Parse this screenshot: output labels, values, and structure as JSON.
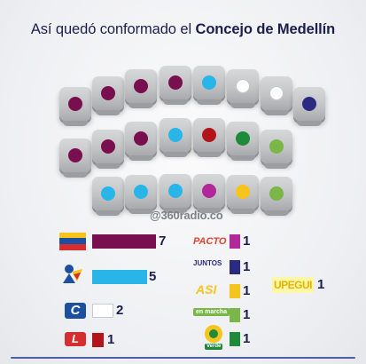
{
  "title": {
    "prefix": "Así quedó conformado el ",
    "bold": "Concejo de Medellín"
  },
  "source": "@360radio.co",
  "colors": {
    "purple": "#7a0f4f",
    "cyan": "#29b5e8",
    "white": "#ffffff",
    "navy": "#2a2a83",
    "red": "#b3141b",
    "green": "#1f8a3a",
    "lightgreen": "#7ab648",
    "yellow": "#f6c41a",
    "magenta": "#b2279a"
  },
  "seats": [
    "purple",
    "purple",
    "purple",
    "purple",
    "cyan",
    "white",
    "white",
    "navy",
    "purple",
    "purple",
    "purple",
    "cyan",
    "red",
    "green",
    "lightgreen",
    "cyan",
    "cyan",
    "cyan",
    "magenta",
    "yellow",
    "lightgreen"
  ],
  "legend": {
    "left": [
      {
        "party": "partido-liberal",
        "color": "#7a0f4f",
        "count": "7"
      },
      {
        "party": "centro-democratico",
        "color": "#29b5e8",
        "count": "5"
      },
      {
        "party": "partido-conservador",
        "color": "#ffffff",
        "count": "2"
      },
      {
        "party": "partido-liberal-logo-l",
        "color": "#b3141b",
        "count": "1"
      }
    ],
    "right": [
      {
        "party": "pacto",
        "logo_text": "PACTO",
        "color": "#b2279a",
        "count": "1"
      },
      {
        "party": "juntos",
        "logo_text": "JUNTOS",
        "color": "#2a2a83",
        "count": "1"
      },
      {
        "party": "asi",
        "logo_text": "ASI",
        "color": "#f6c41a",
        "count": "1"
      },
      {
        "party": "en-marcha",
        "logo_text": "en marcha",
        "color": "#7ab648",
        "count": "1"
      },
      {
        "party": "verde",
        "logo_text": "Verde",
        "color": "#1f8a3a",
        "count": "1"
      }
    ],
    "extra": {
      "label": "UPEGUI",
      "count": "1"
    }
  }
}
